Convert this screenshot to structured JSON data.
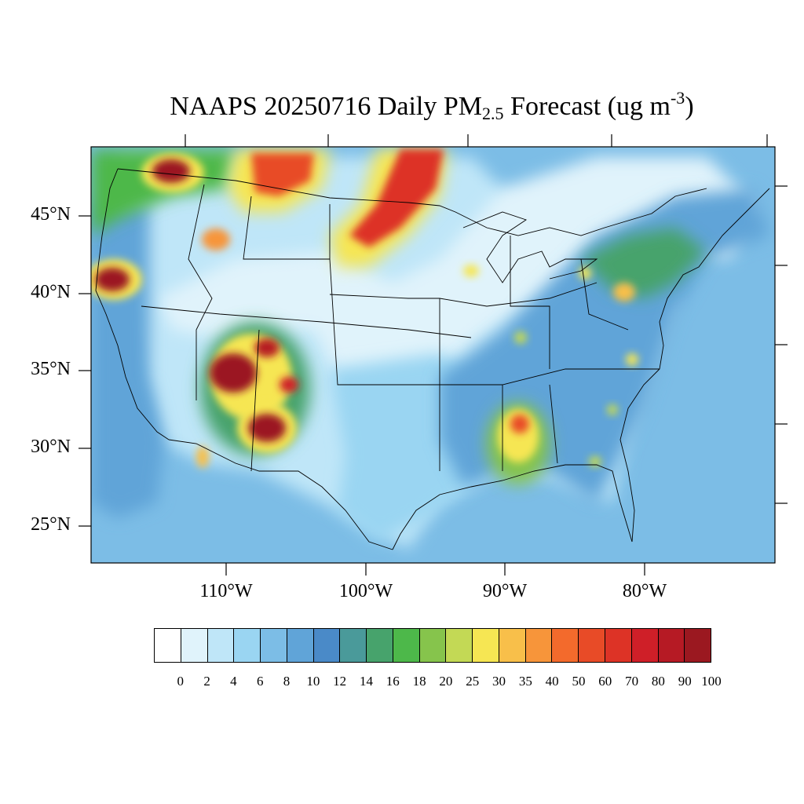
{
  "title": {
    "prefix": "NAAPS 20250716 Daily PM",
    "subscript": "2.5",
    "middle": " Forecast (ug m",
    "superscript": "-3",
    "suffix": ")"
  },
  "lat_labels": [
    "45°N",
    "40°N",
    "35°N",
    "30°N",
    "25°N"
  ],
  "lon_labels": [
    "110°W",
    "100°W",
    "90°W",
    "80°W"
  ],
  "colorbar": {
    "tick_labels": [
      "0",
      "2",
      "4",
      "6",
      "8",
      "10",
      "12",
      "14",
      "16",
      "18",
      "20",
      "25",
      "30",
      "35",
      "40",
      "50",
      "60",
      "70",
      "80",
      "90",
      "100"
    ],
    "colors": [
      "#ffffff",
      "#e0f3fb",
      "#bfe6f8",
      "#9ad5f2",
      "#7cbde6",
      "#60a4d8",
      "#4a8ac8",
      "#4a9a9a",
      "#47a36c",
      "#4db84a",
      "#86c44c",
      "#c3d955",
      "#f6e653",
      "#f8bf4a",
      "#f7953a",
      "#f36a2c",
      "#e84b27",
      "#dd3326",
      "#cf1f28",
      "#b61a24",
      "#9b1820"
    ]
  },
  "map": {
    "ocean_color": "#7cbde6",
    "land_base_color": "#bfe6f8"
  }
}
